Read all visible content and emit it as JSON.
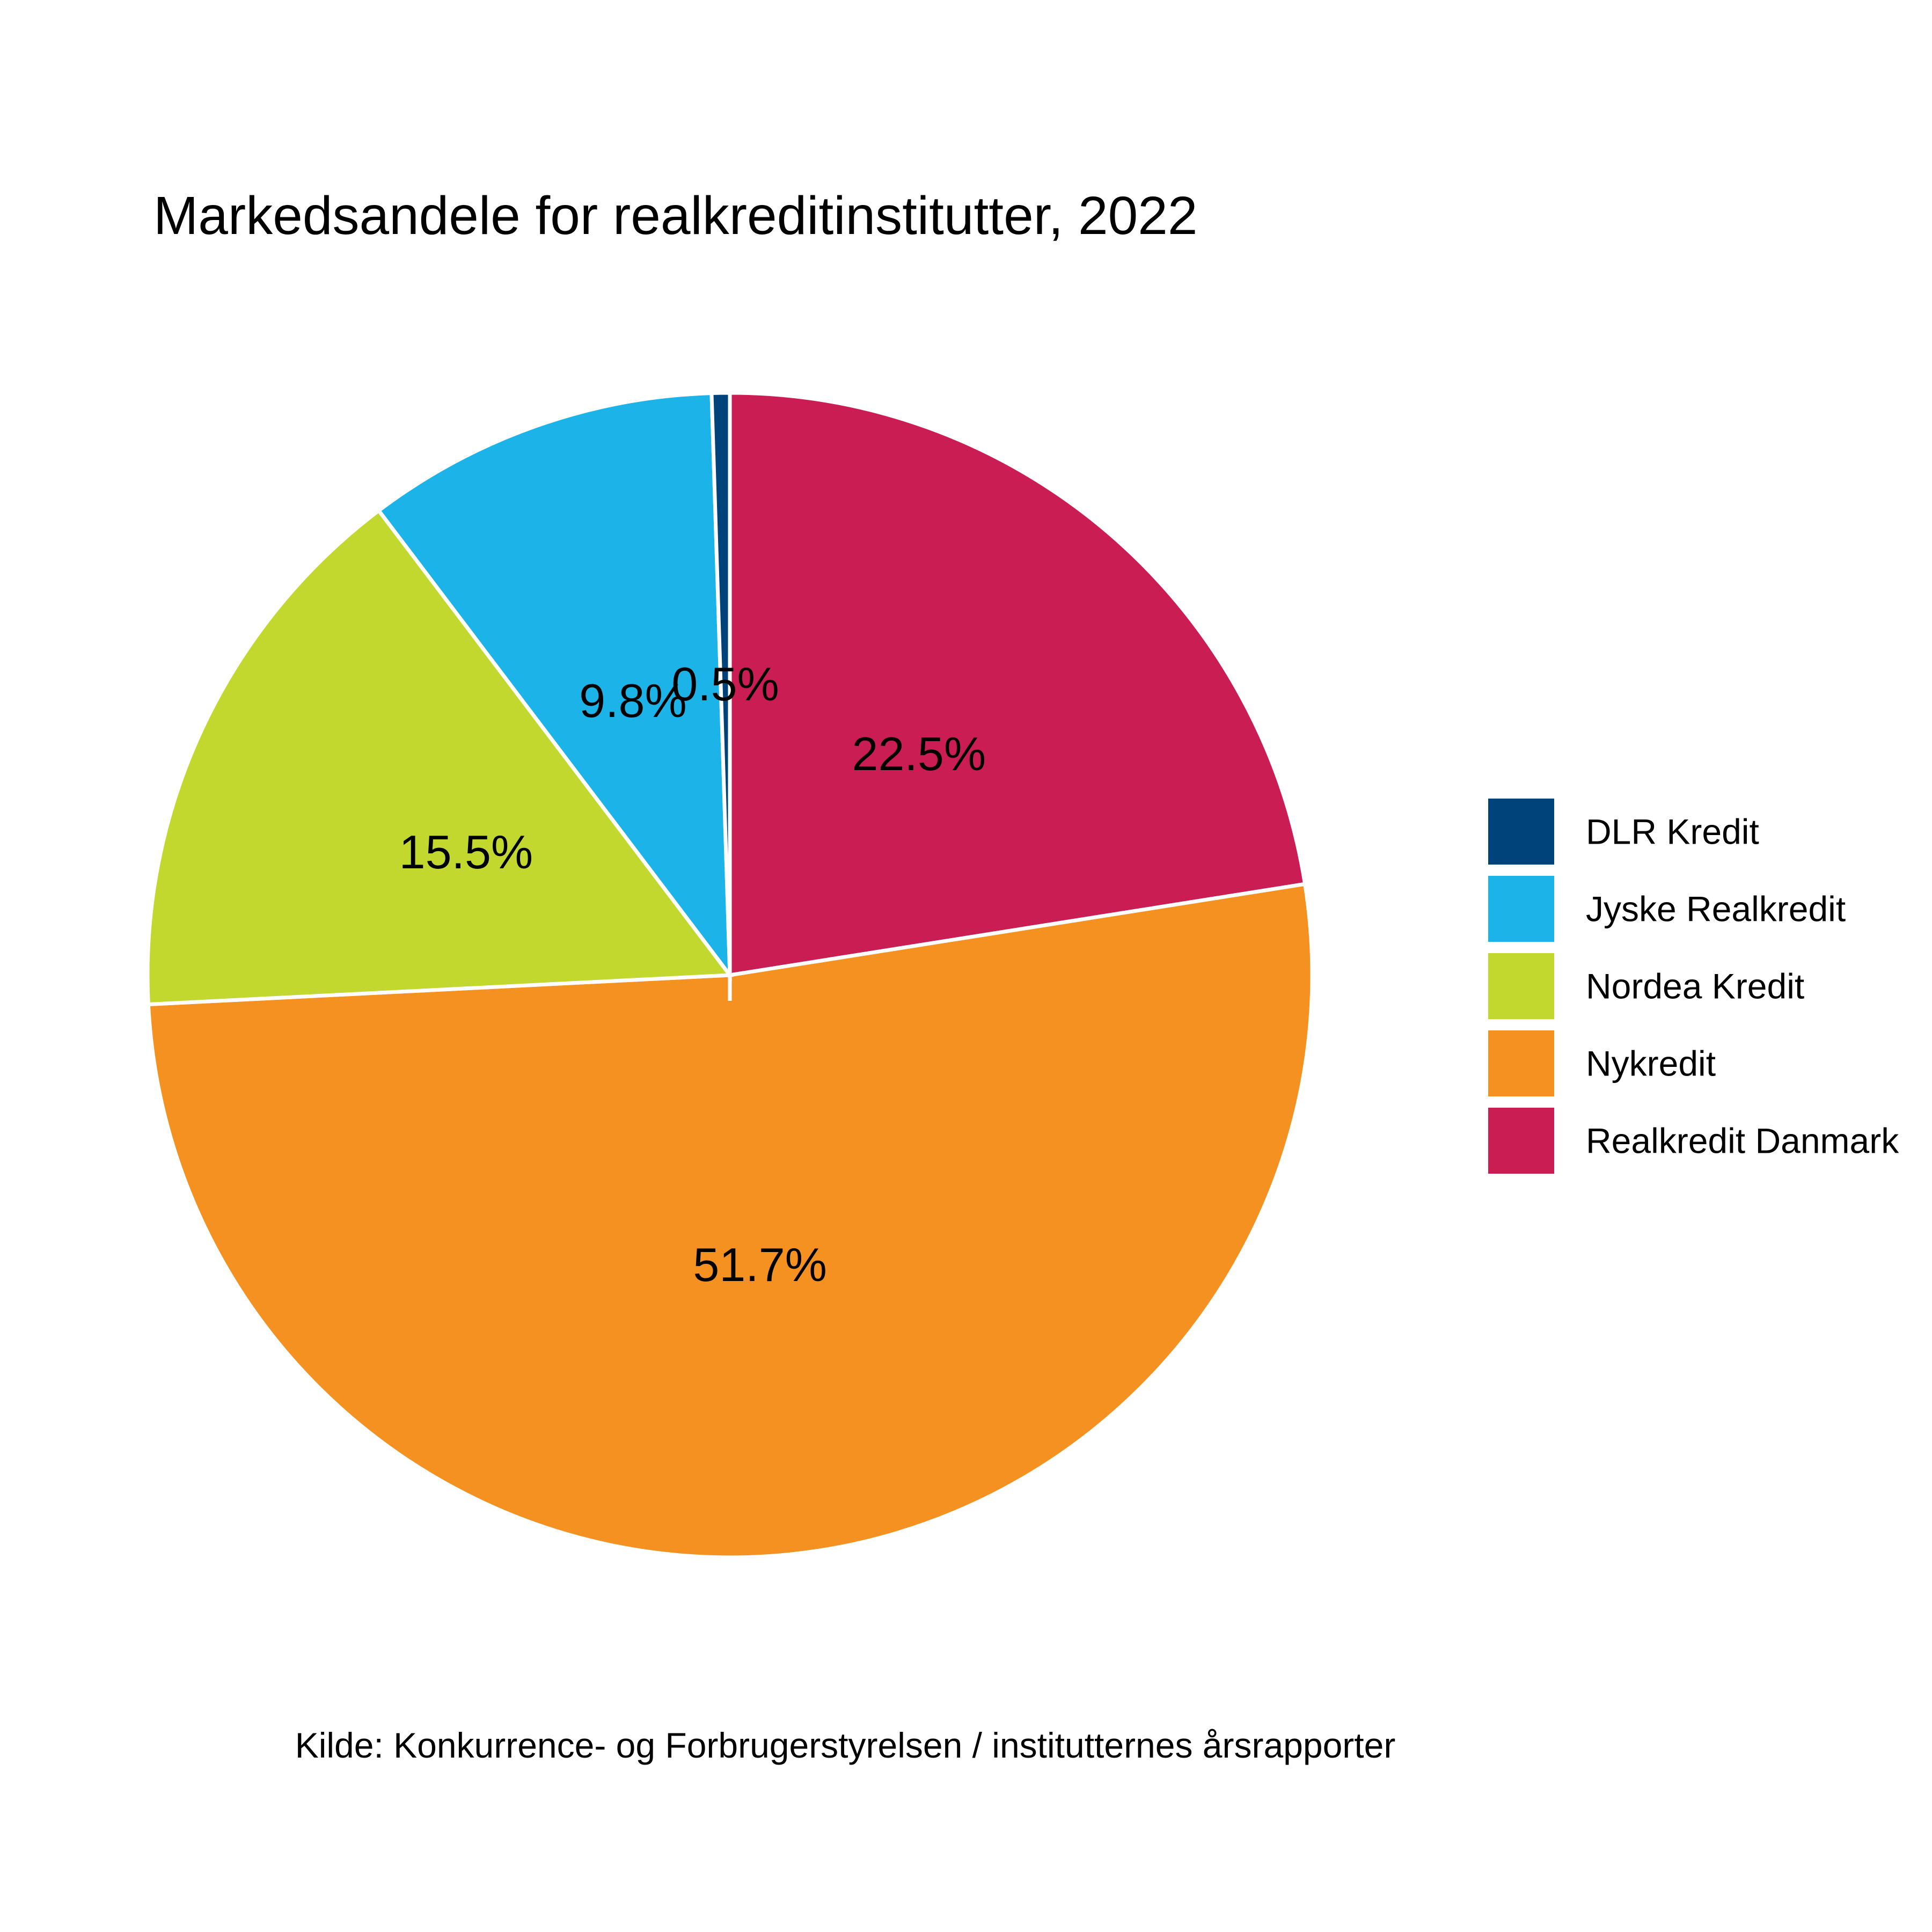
{
  "chart_data": {
    "type": "pie",
    "title": "Markedsandele for realkreditinstitutter, 2022",
    "caption": "Kilde: Konkurrence- og Forbrugerstyrelsen / institutternes årsrapporter",
    "slices": [
      {
        "name": "Realkredit Danmark",
        "value": 22.5,
        "label": "22.5%",
        "color": "#C91D54"
      },
      {
        "name": "Nykredit",
        "value": 51.7,
        "label": "51.7%",
        "color": "#F59121"
      },
      {
        "name": "Nordea Kredit",
        "value": 15.5,
        "label": "15.5%",
        "color": "#C2D82F"
      },
      {
        "name": "Jyske Realkredit",
        "value": 9.8,
        "label": "9.8%",
        "color": "#1CB4E8"
      },
      {
        "name": "DLR Kredit",
        "value": 0.5,
        "label": "0.5%",
        "color": "#00437A"
      }
    ],
    "direction": "clockwise from top",
    "legend": {
      "position": "right",
      "entries": [
        "DLR Kredit",
        "Jyske Realkredit",
        "Nordea Kredit",
        "Nykredit",
        "Realkredit Danmark"
      ]
    }
  }
}
